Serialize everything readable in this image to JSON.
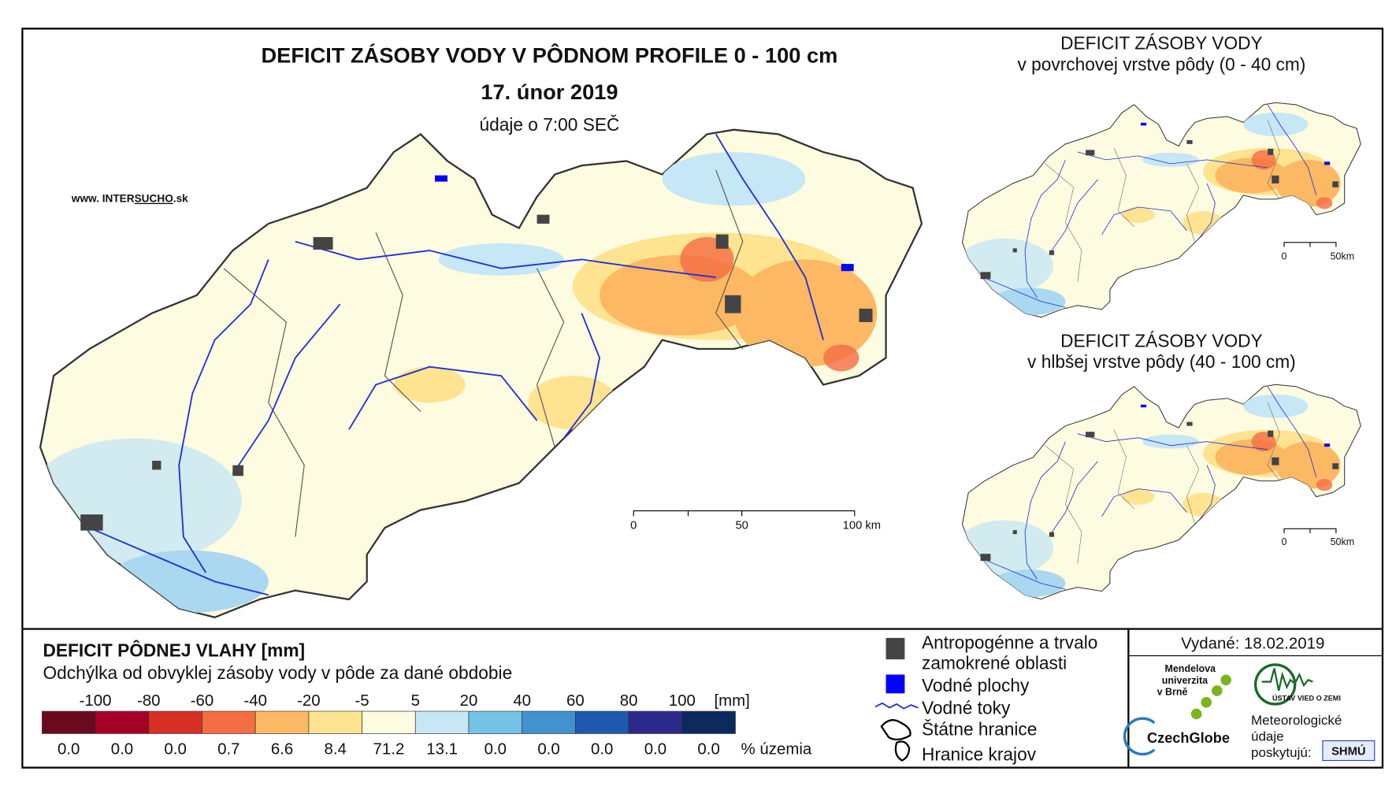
{
  "main_map": {
    "title": "DEFICIT ZÁSOBY VODY V PÔDNOM PROFILE 0 - 100 cm",
    "date": "17. únor 2019",
    "note": "údaje o 7:00 SEČ",
    "website": {
      "prefix": "www. INTER",
      "highlight": "SUCHO",
      "suffix": ".sk"
    },
    "scale_bar": [
      "0",
      "50",
      "100 km"
    ]
  },
  "inset_top": {
    "title": "DEFICIT ZÁSOBY VODY",
    "subtitle": "v povrchovej vrstve pôdy (0 - 40 cm)",
    "scale_bar": [
      "0",
      "50km"
    ]
  },
  "inset_bottom": {
    "title": "DEFICIT ZÁSOBY VODY",
    "subtitle": "v hlbšej vrstve pôdy (40 - 100 cm)",
    "scale_bar": [
      "0",
      "50km"
    ]
  },
  "legend": {
    "title": "DEFICIT PÔDNEJ VLAHY [mm]",
    "subtitle": "Odchýlka od obvyklej zásoby vody v pôde za dané obdobie",
    "unit": "[mm]",
    "thresholds": [
      -100,
      -80,
      -60,
      -40,
      -20,
      -5,
      5,
      20,
      40,
      60,
      80,
      100
    ],
    "classes": [
      {
        "color": "#6b0a1e",
        "percent": "0.0"
      },
      {
        "color": "#a50026",
        "percent": "0.0"
      },
      {
        "color": "#d73027",
        "percent": "0.0"
      },
      {
        "color": "#f46d43",
        "percent": "0.7"
      },
      {
        "color": "#fdb863",
        "percent": "6.6"
      },
      {
        "color": "#fee391",
        "percent": "8.4"
      },
      {
        "color": "#fdfbe0",
        "percent": "71.2"
      },
      {
        "color": "#c6e7f5",
        "percent": "13.1"
      },
      {
        "color": "#74c2e6",
        "percent": "0.0"
      },
      {
        "color": "#4292d0",
        "percent": "0.0"
      },
      {
        "color": "#2059b0",
        "percent": "0.0"
      },
      {
        "color": "#2b2a8c",
        "percent": "0.0"
      },
      {
        "color": "#0b2a5e",
        "percent": "0.0"
      }
    ],
    "percent_label": "% územia"
  },
  "symbols": [
    "Antropogénne a trvalo",
    "zamokrené oblasti",
    "Vodné plochy",
    "Vodné toky",
    "Štátne hranice",
    "Hranice krajov"
  ],
  "issued": "Vydané: 18.02.2019",
  "logos": {
    "mendel": [
      "Mendelova",
      "univerzita",
      "v Brně"
    ],
    "czechglobe": "CzechGlobe",
    "uvz": "ÚSTAV VIED O ZEMI",
    "meteo": [
      "Meteorologické",
      "údaje",
      "poskytujú:"
    ],
    "shmu": "SHMÚ"
  }
}
